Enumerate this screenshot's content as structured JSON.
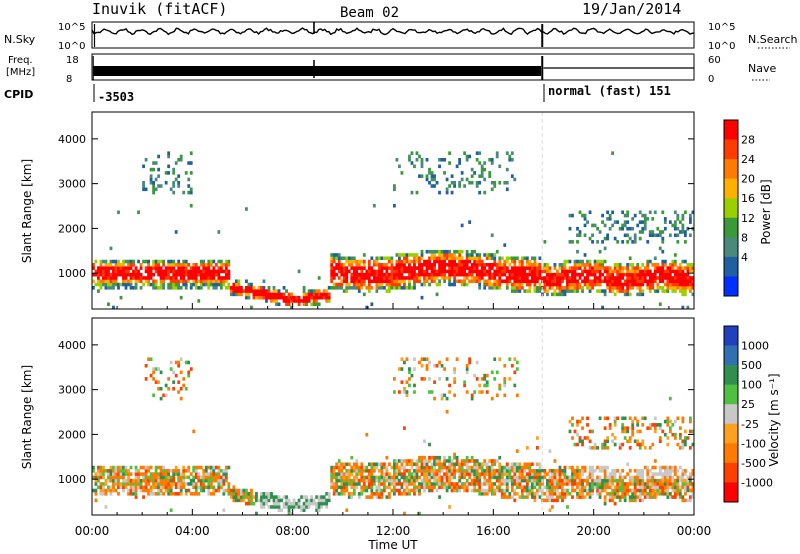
{
  "header": {
    "station": "Inuvik (fitACF)",
    "beam": "Beam 02",
    "date": "19/Jan/2014"
  },
  "top_panels": {
    "nsky": {
      "label": "N.Sky",
      "y_ticks": [
        "10^5",
        "10^0"
      ]
    },
    "nsearch": {
      "label": "N.Search",
      "y_ticks": [
        "10^5",
        "10^0"
      ]
    },
    "freq": {
      "label_line1": "Freq.",
      "label_line2": "[MHz]",
      "y_ticks": [
        "18",
        "8"
      ]
    },
    "nave": {
      "label": "Nave",
      "y_ticks": [
        "60",
        "0"
      ]
    },
    "cpid": {
      "label": "CPID",
      "segments": [
        "-3503",
        "normal (fast) 151"
      ]
    }
  },
  "chart_data": [
    {
      "type": "heatmap",
      "panel": "power",
      "ylabel": "Slant Range [km]",
      "yticks": [
        1000,
        2000,
        3000,
        4000
      ],
      "ylim": [
        200,
        4600
      ],
      "x_ticks": [
        "00:00",
        "04:00",
        "08:00",
        "12:00",
        "16:00",
        "20:00",
        "00:00"
      ],
      "xlim_hours": [
        0,
        24
      ],
      "colorbar": {
        "label": "Power [dB]",
        "ticks": [
          "28",
          "24",
          "20",
          "16",
          "12",
          "8",
          "4"
        ],
        "colors": [
          "#ff0000",
          "#ff3c00",
          "#ff7a00",
          "#ffb000",
          "#9ad000",
          "#3a9a3a",
          "#4a8a7a",
          "#2060a0",
          "#0030ff"
        ]
      }
    },
    {
      "type": "heatmap",
      "panel": "velocity",
      "ylabel": "Slant Range [km]",
      "yticks": [
        1000,
        2000,
        3000,
        4000
      ],
      "ylim": [
        200,
        4600
      ],
      "xlabel": "Time UT",
      "x_ticks": [
        "00:00",
        "04:00",
        "08:00",
        "12:00",
        "16:00",
        "20:00",
        "00:00"
      ],
      "xlim_hours": [
        0,
        24
      ],
      "colorbar": {
        "label": "Velocity [m s⁻¹]",
        "ticks": [
          "1000",
          "500",
          "100",
          "25",
          "-25",
          "-100",
          "-500",
          "-1000"
        ],
        "colors": [
          "#2040c0",
          "#3070b0",
          "#2f8f4f",
          "#50c040",
          "#c8c8c8",
          "#ffa020",
          "#ff7a00",
          "#ff4000",
          "#ff0000"
        ]
      }
    }
  ]
}
